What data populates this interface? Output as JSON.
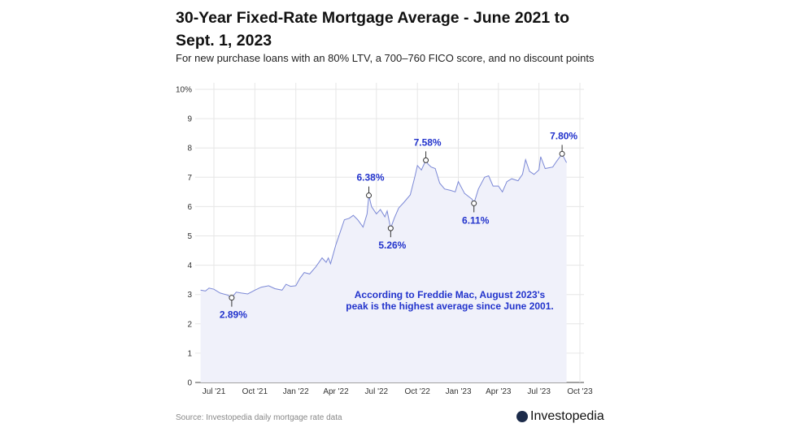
{
  "header": {
    "title": "30-Year Fixed-Rate Mortgage Average - June 2021 to Sept. 1, 2023",
    "subtitle": "For new purchase loans with an 80% LTV, a 700–760 FICO score, and no discount points"
  },
  "footer": {
    "source": "Source: Investopedia daily mortgage rate data",
    "logo": "Investopedia"
  },
  "chart_data": {
    "type": "area",
    "title": "30-Year Fixed-Rate Mortgage Average - June 2021 to Sept. 1, 2023",
    "xlabel": "",
    "ylabel": "",
    "ylim": [
      0,
      10
    ],
    "xlim": [
      "2021-05-20",
      "2023-10-10"
    ],
    "grid": true,
    "y_ticks": [
      "0",
      "1",
      "2",
      "3",
      "4",
      "5",
      "6",
      "7",
      "8",
      "9",
      "10%"
    ],
    "x_ticks": [
      {
        "label": "Jul '21",
        "date": "2021-07-01"
      },
      {
        "label": "Oct '21",
        "date": "2021-10-01"
      },
      {
        "label": "Jan '22",
        "date": "2022-01-01"
      },
      {
        "label": "Apr '22",
        "date": "2022-04-01"
      },
      {
        "label": "Jul '22",
        "date": "2022-07-01"
      },
      {
        "label": "Oct '22",
        "date": "2022-10-01"
      },
      {
        "label": "Jan '23",
        "date": "2023-01-01"
      },
      {
        "label": "Apr '23",
        "date": "2023-04-01"
      },
      {
        "label": "Jul '23",
        "date": "2023-07-01"
      },
      {
        "label": "Oct '23",
        "date": "2023-10-01"
      }
    ],
    "colors": {
      "line": "#7b88d6",
      "fill": "#f0f1fa",
      "annotation": "#2233cc"
    },
    "series": [
      {
        "points": [
          [
            "2021-06-01",
            3.15
          ],
          [
            "2021-06-12",
            3.12
          ],
          [
            "2021-06-20",
            3.22
          ],
          [
            "2021-07-01",
            3.18
          ],
          [
            "2021-07-15",
            3.05
          ],
          [
            "2021-08-01",
            2.98
          ],
          [
            "2021-08-10",
            2.89
          ],
          [
            "2021-08-20",
            3.08
          ],
          [
            "2021-09-01",
            3.05
          ],
          [
            "2021-09-15",
            3.02
          ],
          [
            "2021-10-01",
            3.15
          ],
          [
            "2021-10-15",
            3.25
          ],
          [
            "2021-11-01",
            3.3
          ],
          [
            "2021-11-15",
            3.2
          ],
          [
            "2021-12-01",
            3.15
          ],
          [
            "2021-12-10",
            3.35
          ],
          [
            "2021-12-20",
            3.28
          ],
          [
            "2022-01-01",
            3.3
          ],
          [
            "2022-01-10",
            3.55
          ],
          [
            "2022-01-20",
            3.75
          ],
          [
            "2022-02-01",
            3.7
          ],
          [
            "2022-02-15",
            3.95
          ],
          [
            "2022-03-01",
            4.25
          ],
          [
            "2022-03-10",
            4.1
          ],
          [
            "2022-03-15",
            4.25
          ],
          [
            "2022-03-20",
            4.05
          ],
          [
            "2022-04-01",
            4.7
          ],
          [
            "2022-04-10",
            5.1
          ],
          [
            "2022-04-20",
            5.55
          ],
          [
            "2022-05-01",
            5.6
          ],
          [
            "2022-05-10",
            5.7
          ],
          [
            "2022-05-20",
            5.55
          ],
          [
            "2022-06-01",
            5.3
          ],
          [
            "2022-06-10",
            5.75
          ],
          [
            "2022-06-14",
            6.38
          ],
          [
            "2022-06-20",
            6.0
          ],
          [
            "2022-07-01",
            5.75
          ],
          [
            "2022-07-10",
            5.9
          ],
          [
            "2022-07-20",
            5.65
          ],
          [
            "2022-07-25",
            5.85
          ],
          [
            "2022-08-02",
            5.26
          ],
          [
            "2022-08-10",
            5.6
          ],
          [
            "2022-08-20",
            5.95
          ],
          [
            "2022-09-01",
            6.15
          ],
          [
            "2022-09-15",
            6.4
          ],
          [
            "2022-09-25",
            7.0
          ],
          [
            "2022-10-01",
            7.4
          ],
          [
            "2022-10-10",
            7.25
          ],
          [
            "2022-10-20",
            7.58
          ],
          [
            "2022-10-25",
            7.45
          ],
          [
            "2022-11-01",
            7.35
          ],
          [
            "2022-11-10",
            7.3
          ],
          [
            "2022-11-20",
            6.8
          ],
          [
            "2022-12-01",
            6.6
          ],
          [
            "2022-12-15",
            6.55
          ],
          [
            "2022-12-25",
            6.5
          ],
          [
            "2023-01-01",
            6.85
          ],
          [
            "2023-01-15",
            6.45
          ],
          [
            "2023-02-01",
            6.25
          ],
          [
            "2023-02-05",
            6.11
          ],
          [
            "2023-02-15",
            6.6
          ],
          [
            "2023-03-01",
            7.0
          ],
          [
            "2023-03-10",
            7.05
          ],
          [
            "2023-03-20",
            6.7
          ],
          [
            "2023-04-01",
            6.7
          ],
          [
            "2023-04-10",
            6.5
          ],
          [
            "2023-04-20",
            6.85
          ],
          [
            "2023-05-01",
            6.95
          ],
          [
            "2023-05-15",
            6.88
          ],
          [
            "2023-05-25",
            7.1
          ],
          [
            "2023-06-01",
            7.6
          ],
          [
            "2023-06-10",
            7.2
          ],
          [
            "2023-06-20",
            7.1
          ],
          [
            "2023-07-01",
            7.25
          ],
          [
            "2023-07-05",
            7.7
          ],
          [
            "2023-07-15",
            7.3
          ],
          [
            "2023-08-01",
            7.35
          ],
          [
            "2023-08-10",
            7.55
          ],
          [
            "2023-08-22",
            7.8
          ],
          [
            "2023-08-27",
            7.65
          ],
          [
            "2023-09-01",
            7.5
          ]
        ]
      }
    ],
    "annotations": [
      {
        "date": "2021-08-10",
        "value": 2.89,
        "label": "2.89%",
        "position": "below"
      },
      {
        "date": "2022-06-14",
        "value": 6.38,
        "label": "6.38%",
        "position": "above"
      },
      {
        "date": "2022-08-02",
        "value": 5.26,
        "label": "5.26%",
        "position": "below"
      },
      {
        "date": "2022-10-20",
        "value": 7.58,
        "label": "7.58%",
        "position": "above"
      },
      {
        "date": "2023-02-05",
        "value": 6.11,
        "label": "6.11%",
        "position": "below"
      },
      {
        "date": "2023-08-22",
        "value": 7.8,
        "label": "7.80%",
        "position": "above"
      }
    ],
    "note": [
      "According to Freddie Mac, August 2023's",
      "peak is the highest average since June 2001."
    ]
  }
}
